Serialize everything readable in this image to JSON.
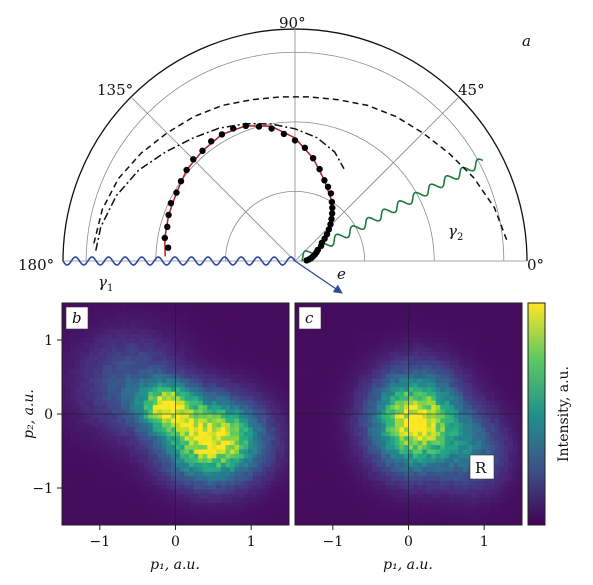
{
  "panels": {
    "a": {
      "label": "a",
      "angle_labels": [
        "180°",
        "135°",
        "90°",
        "45°",
        "0°"
      ],
      "gamma1": "γ",
      "gamma1_sub": "1",
      "gamma2": "γ",
      "gamma2_sub": "2",
      "electron": "e"
    },
    "b": {
      "label": "b"
    },
    "c": {
      "label": "c",
      "region_label": "R"
    }
  },
  "colors": {
    "wave_gamma1": "#2c4aa0",
    "wave_gamma2": "#1f7a3a",
    "fit_curve": "#b0232a",
    "viridis_low": "#440154",
    "viridis_mid": "#21918c",
    "viridis_high": "#fde725"
  },
  "chart_data": [
    {
      "type": "scatter",
      "subtype": "polar",
      "angle_ticks_deg": [
        0,
        45,
        90,
        135,
        180
      ],
      "radial_range": [
        0,
        1
      ],
      "grid": true,
      "series": [
        {
          "kind": "points",
          "angle_deg": [
            174,
            170,
            165,
            160,
            155,
            150,
            145,
            140,
            135,
            130,
            125,
            120,
            115,
            110,
            105,
            100,
            95,
            90,
            85,
            80,
            75,
            70,
            66,
            62,
            58,
            55,
            52,
            49,
            46,
            43,
            40,
            37,
            34,
            30,
            26,
            22,
            18,
            14,
            10,
            6,
            3
          ],
          "r": [
            0.55,
            0.57,
            0.57,
            0.58,
            0.59,
            0.59,
            0.6,
            0.61,
            0.62,
            0.62,
            0.63,
            0.63,
            0.63,
            0.62,
            0.6,
            0.58,
            0.55,
            0.52,
            0.49,
            0.45,
            0.41,
            0.37,
            0.35,
            0.33,
            0.3,
            0.28,
            0.26,
            0.24,
            0.22,
            0.2,
            0.18,
            0.16,
            0.14,
            0.13,
            0.11,
            0.1,
            0.09,
            0.08,
            0.07,
            0.06,
            0.05
          ]
        },
        {
          "kind": "line",
          "style": "solid",
          "angle_deg": [
            178,
            170,
            160,
            150,
            140,
            130,
            120,
            110,
            100,
            90,
            80,
            70,
            60,
            50,
            40,
            30,
            20,
            10,
            3
          ],
          "r": [
            0.56,
            0.57,
            0.58,
            0.59,
            0.61,
            0.62,
            0.63,
            0.62,
            0.59,
            0.53,
            0.45,
            0.37,
            0.31,
            0.25,
            0.19,
            0.14,
            0.1,
            0.07,
            0.05
          ]
        },
        {
          "kind": "line",
          "style": "dashed",
          "angle_deg": [
            175,
            165,
            155,
            145,
            135,
            125,
            115,
            105,
            95,
            85,
            75,
            65,
            55,
            45,
            35,
            25,
            15,
            5
          ],
          "r": [
            0.87,
            0.86,
            0.84,
            0.81,
            0.78,
            0.76,
            0.74,
            0.72,
            0.71,
            0.71,
            0.72,
            0.74,
            0.76,
            0.78,
            0.81,
            0.85,
            0.89,
            0.92
          ]
        },
        {
          "kind": "line",
          "style": "dash-dot",
          "angle_deg": [
            177,
            170,
            160,
            150,
            140,
            130,
            120,
            110,
            100,
            90,
            80,
            70,
            62
          ],
          "r": [
            0.86,
            0.85,
            0.82,
            0.78,
            0.73,
            0.69,
            0.66,
            0.63,
            0.6,
            0.57,
            0.54,
            0.5,
            0.45
          ]
        }
      ]
    },
    {
      "type": "heatmap",
      "panel": "b",
      "xlabel": "p₁, a.u.",
      "ylabel": "p₂, a.u.",
      "xlim": [
        -1.5,
        1.5
      ],
      "ylim": [
        -1.5,
        1.5
      ],
      "xticks": [
        -1,
        0,
        1
      ],
      "yticks": [
        -1,
        0,
        1
      ],
      "blobs": [
        {
          "x": -0.1,
          "y": 0.1,
          "sigma_x": 0.25,
          "sigma_y": 0.22,
          "amp": 0.75
        },
        {
          "x": 0.5,
          "y": -0.35,
          "sigma_x": 0.42,
          "sigma_y": 0.36,
          "amp": 1.0
        },
        {
          "x": -0.6,
          "y": 0.4,
          "sigma_x": 0.45,
          "sigma_y": 0.45,
          "amp": 0.25
        }
      ]
    },
    {
      "type": "heatmap",
      "panel": "c",
      "xlabel": "p₁, a.u.",
      "xlim": [
        -1.5,
        1.5
      ],
      "ylim": [
        -1.5,
        1.5
      ],
      "xticks": [
        -1,
        0,
        1
      ],
      "blobs": [
        {
          "x": 0.1,
          "y": -0.1,
          "sigma_x": 0.38,
          "sigma_y": 0.42,
          "amp": 1.0
        },
        {
          "x": 0.85,
          "y": -0.5,
          "sigma_x": 0.3,
          "sigma_y": 0.35,
          "amp": 0.3
        }
      ]
    },
    {
      "type": "heatmap",
      "part": "colorbar",
      "label": "Intensity, a.u.",
      "colormap": "viridis"
    }
  ]
}
